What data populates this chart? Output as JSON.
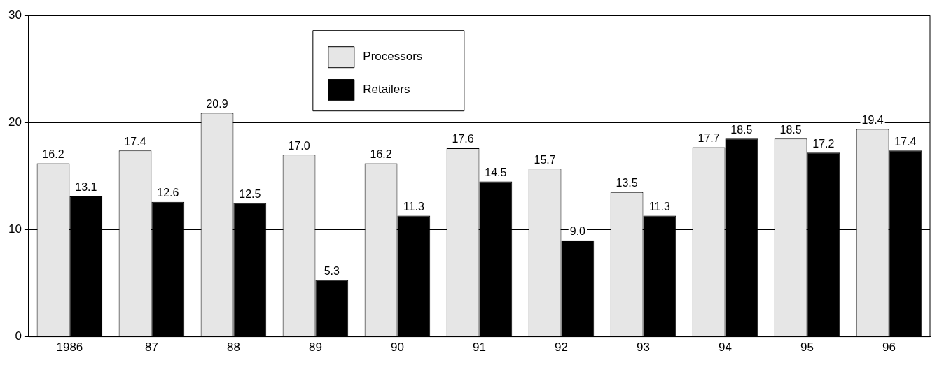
{
  "chart_data": {
    "type": "bar",
    "categories": [
      "1986",
      "87",
      "88",
      "89",
      "90",
      "91",
      "92",
      "93",
      "94",
      "95",
      "96"
    ],
    "series": [
      {
        "name": "Processors",
        "color": "#e6e6e6",
        "values": [
          16.2,
          17.4,
          20.9,
          17.0,
          16.2,
          17.6,
          15.7,
          13.5,
          17.7,
          18.5,
          19.4
        ],
        "value_labels": [
          "16.2",
          "17.4",
          "20.9",
          "17.0",
          "16.2",
          "17.6",
          "15.7",
          "13.5",
          "17.7",
          "18.5",
          "19.4"
        ]
      },
      {
        "name": "Retailers",
        "color": "#000000",
        "values": [
          13.1,
          12.6,
          12.5,
          5.3,
          11.3,
          14.5,
          9.0,
          11.3,
          18.5,
          17.2,
          17.4
        ],
        "value_labels": [
          "13.1",
          "12.6",
          "12.5",
          "5.3",
          "11.3",
          "14.5",
          "9.0",
          "11.3",
          "18.5",
          "17.2",
          "17.4"
        ]
      }
    ],
    "ylim": [
      0,
      30
    ],
    "yticks": [
      0,
      10,
      20,
      30
    ],
    "grid": "y",
    "legend": "top"
  }
}
